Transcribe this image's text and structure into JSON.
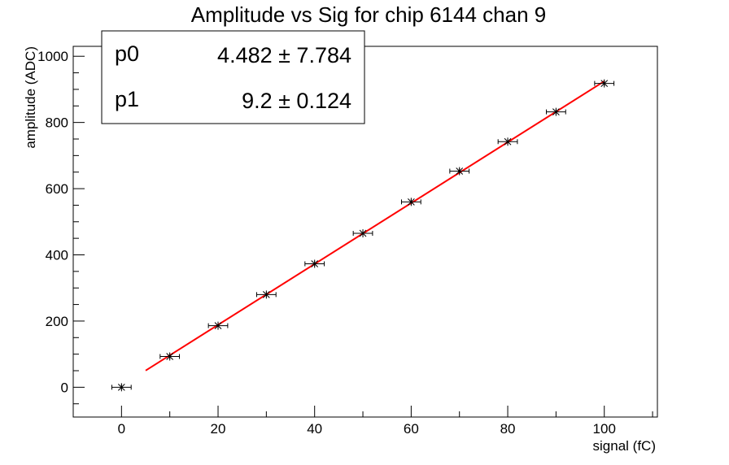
{
  "chart_data": {
    "type": "scatter",
    "title": "Amplitude vs Sig for chip 6144 chan 9",
    "xlabel": "signal (fC)",
    "ylabel": "amplitude (ADC)",
    "xlim": [
      -10,
      111
    ],
    "ylim": [
      -90,
      1030
    ],
    "x_ticks": [
      0,
      20,
      40,
      60,
      80,
      100
    ],
    "y_ticks": [
      0,
      200,
      400,
      600,
      800,
      1000
    ],
    "points": {
      "x": [
        0,
        10,
        20,
        30,
        40,
        50,
        60,
        70,
        80,
        90,
        100
      ],
      "y": [
        0,
        93,
        186,
        280,
        373,
        465,
        560,
        653,
        742,
        832,
        918
      ],
      "x_err": 2,
      "y_err": 8
    },
    "fit": {
      "color": "#ff0000",
      "x_range": [
        5,
        100
      ],
      "p0": 4.482,
      "p1": 9.2
    },
    "stats": [
      {
        "name": "p0",
        "value": "4.482 ± 7.784"
      },
      {
        "name": "p1",
        "value": "9.2 ± 0.124"
      }
    ],
    "grid": false,
    "legend": "top-left"
  }
}
